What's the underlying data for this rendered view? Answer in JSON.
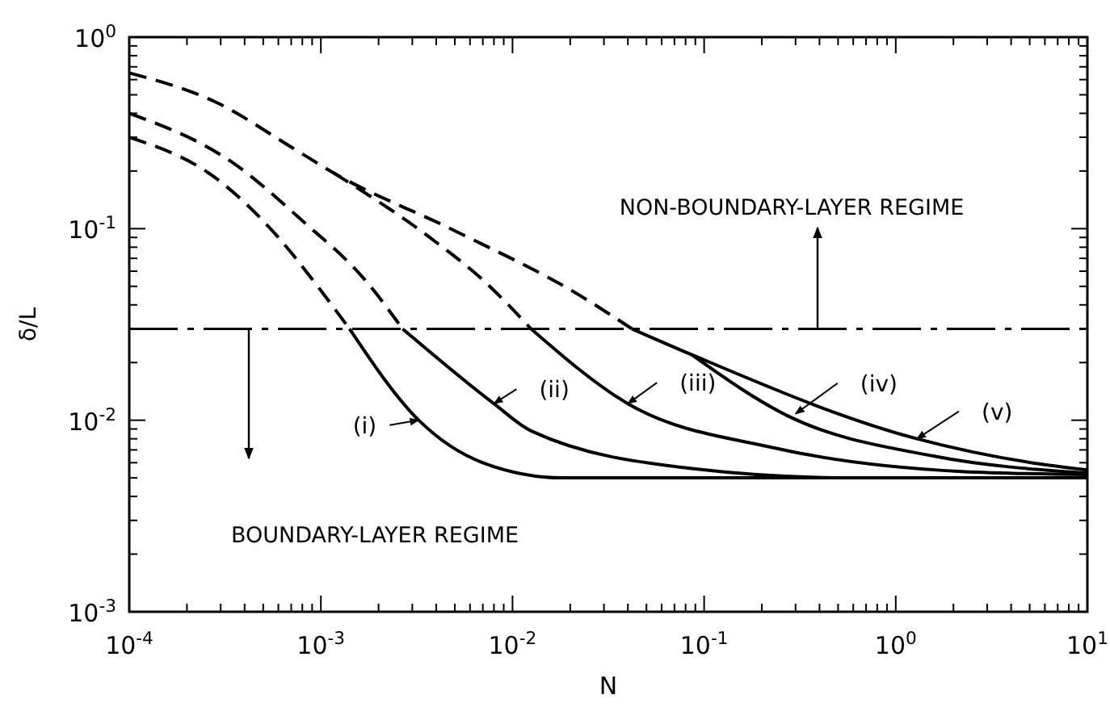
{
  "chart_data": {
    "type": "line",
    "xlabel": "N",
    "ylabel": "δ/L",
    "log": "xy",
    "grid": false,
    "marker": "none",
    "xlim": [
      0.0001,
      10
    ],
    "ylim": [
      0.001,
      1
    ],
    "xticks": [
      {
        "value": 0.0001,
        "label": "10$^{-4}$"
      },
      {
        "value": 0.0002,
        "label": null
      },
      {
        "value": 0.0003,
        "label": null
      },
      {
        "value": 0.0004,
        "label": null
      },
      {
        "value": 0.0005,
        "label": null
      },
      {
        "value": 0.0006,
        "label": null
      },
      {
        "value": 0.0007,
        "label": null
      },
      {
        "value": 0.0008,
        "label": null
      },
      {
        "value": 0.0009,
        "label": null
      },
      {
        "value": 0.001,
        "label": "10$^{-3}$"
      },
      {
        "value": 0.002,
        "label": null
      },
      {
        "value": 0.003,
        "label": null
      },
      {
        "value": 0.004,
        "label": null
      },
      {
        "value": 0.005,
        "label": null
      },
      {
        "value": 0.006,
        "label": null
      },
      {
        "value": 0.007,
        "label": null
      },
      {
        "value": 0.008,
        "label": null
      },
      {
        "value": 0.009,
        "label": null
      },
      {
        "value": 0.01,
        "label": "10$^{-2}$"
      },
      {
        "value": 0.02,
        "label": null
      },
      {
        "value": 0.03,
        "label": null
      },
      {
        "value": 0.04,
        "label": null
      },
      {
        "value": 0.05,
        "label": null
      },
      {
        "value": 0.06,
        "label": null
      },
      {
        "value": 0.07,
        "label": null
      },
      {
        "value": 0.08,
        "label": null
      },
      {
        "value": 0.09,
        "label": null
      },
      {
        "value": 0.1,
        "label": "10$^{-1}$"
      },
      {
        "value": 0.2,
        "label": null
      },
      {
        "value": 0.3,
        "label": null
      },
      {
        "value": 0.4,
        "label": null
      },
      {
        "value": 0.5,
        "label": null
      },
      {
        "value": 0.6,
        "label": null
      },
      {
        "value": 0.7,
        "label": null
      },
      {
        "value": 0.8,
        "label": null
      },
      {
        "value": 0.9,
        "label": null
      },
      {
        "value": 1,
        "label": "10$^{0}$"
      },
      {
        "value": 2,
        "label": null
      },
      {
        "value": 3,
        "label": null
      },
      {
        "value": 4,
        "label": null
      },
      {
        "value": 5,
        "label": null
      },
      {
        "value": 6,
        "label": null
      },
      {
        "value": 7,
        "label": null
      },
      {
        "value": 8,
        "label": null
      },
      {
        "value": 9,
        "label": null
      },
      {
        "value": 10,
        "label": "10$^{1}$"
      }
    ],
    "yticks": [
      {
        "value": 0.001,
        "label": "10$^{-3}$"
      },
      {
        "value": 0.002,
        "label": null
      },
      {
        "value": 0.003,
        "label": null
      },
      {
        "value": 0.004,
        "label": null
      },
      {
        "value": 0.005,
        "label": null
      },
      {
        "value": 0.006,
        "label": null
      },
      {
        "value": 0.007,
        "label": null
      },
      {
        "value": 0.008,
        "label": null
      },
      {
        "value": 0.009,
        "label": null
      },
      {
        "value": 0.01,
        "label": "10$^{-2}$"
      },
      {
        "value": 0.02,
        "label": null
      },
      {
        "value": 0.03,
        "label": null
      },
      {
        "value": 0.04,
        "label": null
      },
      {
        "value": 0.05,
        "label": null
      },
      {
        "value": 0.06,
        "label": null
      },
      {
        "value": 0.07,
        "label": null
      },
      {
        "value": 0.08,
        "label": null
      },
      {
        "value": 0.09,
        "label": null
      },
      {
        "value": 0.1,
        "label": "10$^{-1}$"
      },
      {
        "value": 0.2,
        "label": null
      },
      {
        "value": 0.3,
        "label": null
      },
      {
        "value": 0.4,
        "label": null
      },
      {
        "value": 0.5,
        "label": null
      },
      {
        "value": 0.6,
        "label": null
      },
      {
        "value": 0.7,
        "label": null
      },
      {
        "value": 0.8,
        "label": null
      },
      {
        "value": 0.9,
        "label": null
      },
      {
        "value": 1,
        "label": "10$^{0}$"
      }
    ],
    "series": [
      {
        "color": "#000000",
        "line_style": "dashed",
        "x": [
          0.0001,
          0.00028,
          0.0006,
          0.001,
          0.00141
        ],
        "values": [
          0.3,
          0.185,
          0.09,
          0.0475,
          0.03
        ]
      },
      {
        "color": "#000000",
        "line_style": "dashed",
        "x": [
          0.0001,
          0.00034,
          0.0008,
          0.0017,
          0.00267
        ],
        "values": [
          0.4,
          0.224,
          0.11,
          0.054,
          0.03
        ]
      },
      {
        "color": "#000000",
        "line_style": "dashed",
        "x": [
          0.00116,
          0.0037,
          0.007,
          0.0125
        ],
        "values": [
          0.196,
          0.09,
          0.054,
          0.03
        ]
      },
      {
        "color": "#000000",
        "line_style": "dashed",
        "x": [
          0.0001,
          0.00028,
          0.00073,
          0.00116,
          0.005,
          0.0223,
          0.042
        ],
        "values": [
          0.65,
          0.46,
          0.26,
          0.196,
          0.0975,
          0.045,
          0.03
        ]
      },
      {
        "color": "#000000",
        "line_style": "solid",
        "x": [
          0.00141,
          0.00324,
          0.007,
          0.0184,
          0.05,
          10
        ],
        "values": [
          0.03,
          0.01,
          0.006,
          0.005,
          0.005,
          0.005
        ]
      },
      {
        "color": "#000000",
        "line_style": "solid",
        "x": [
          0.00267,
          0.008,
          0.0125,
          0.086,
          0.6,
          10
        ],
        "values": [
          0.03,
          0.0122,
          0.0088,
          0.0056,
          0.005,
          0.005
        ]
      },
      {
        "color": "#000000",
        "line_style": "solid",
        "x": [
          0.0125,
          0.04,
          0.227,
          2.2,
          10
        ],
        "values": [
          0.03,
          0.0122,
          0.0072,
          0.0054,
          0.0052
        ]
      },
      {
        "color": "#000000",
        "line_style": "solid",
        "x": [
          0.086,
          0.275,
          1.57,
          10
        ],
        "values": [
          0.022,
          0.0105,
          0.0065,
          0.0053
        ]
      },
      {
        "color": "#000000",
        "line_style": "solid",
        "x": [
          0.042,
          0.086,
          1.29,
          5.7,
          10
        ],
        "values": [
          0.03,
          0.022,
          0.008,
          0.0059,
          0.0055
        ]
      }
    ],
    "ref_lines": [
      {
        "axis": "y",
        "value": 0.03,
        "line_style": "dashdot",
        "color": "#000000"
      }
    ],
    "annotations": [
      {
        "text": "(i)",
        "x": 0.00324,
        "y": 0.01
      },
      {
        "text": "(ii)",
        "x": 0.008,
        "y": 0.0122
      },
      {
        "text": "(iii)",
        "x": 0.04,
        "y": 0.0122
      },
      {
        "text": "(iv)",
        "x": 0.3,
        "y": 0.0108
      },
      {
        "text": "(v)",
        "x": 1.29,
        "y": 0.008
      },
      "NON-BOUNDARY-LAYER REGIME",
      "BOUNDARY-LAYER REGIME"
    ]
  }
}
